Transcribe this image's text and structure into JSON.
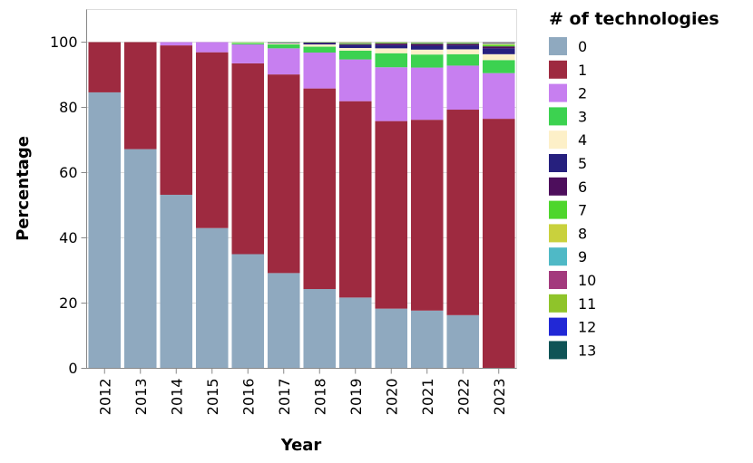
{
  "chart_data": {
    "type": "bar",
    "stacked": true,
    "title": "",
    "xlabel": "Year",
    "ylabel": "Percentage",
    "ylim": [
      0,
      110
    ],
    "yticks": [
      0,
      20,
      40,
      60,
      80,
      100
    ],
    "grid": true,
    "legend_position": "right",
    "legend_title": "# of technologies",
    "categories": [
      "2012",
      "2013",
      "2014",
      "2015",
      "2016",
      "2017",
      "2018",
      "2019",
      "2020",
      "2021",
      "2022",
      "2023"
    ],
    "series": [
      {
        "name": "0",
        "color": "#8fa9bf",
        "values": [
          84.6,
          67.2,
          53.2,
          43.0,
          35.0,
          29.2,
          24.3,
          21.7,
          18.3,
          17.7,
          16.3,
          0.0
        ]
      },
      {
        "name": "1",
        "color": "#9e2a40",
        "values": [
          15.4,
          32.8,
          45.8,
          53.9,
          58.5,
          60.9,
          61.5,
          60.2,
          57.5,
          58.5,
          63.0,
          76.5
        ]
      },
      {
        "name": "2",
        "color": "#c77ff0",
        "values": [
          0.0,
          0.0,
          1.0,
          3.1,
          5.8,
          8.0,
          11.0,
          12.8,
          16.5,
          16.0,
          13.5,
          14.0
        ]
      },
      {
        "name": "3",
        "color": "#3cd250",
        "values": [
          0.0,
          0.0,
          0.0,
          0.0,
          0.4,
          1.2,
          1.8,
          2.7,
          4.3,
          4.0,
          3.5,
          4.0
        ]
      },
      {
        "name": "4",
        "color": "#fdf0c8",
        "values": [
          0.0,
          0.0,
          0.0,
          0.0,
          0.2,
          0.4,
          0.7,
          0.8,
          1.5,
          1.5,
          1.5,
          1.8
        ]
      },
      {
        "name": "5",
        "color": "#26207e",
        "values": [
          0.0,
          0.0,
          0.0,
          0.0,
          0.0,
          0.2,
          0.4,
          0.9,
          1.0,
          1.2,
          1.2,
          1.8
        ]
      },
      {
        "name": "6",
        "color": "#4d0e5c",
        "values": [
          0.0,
          0.0,
          0.0,
          0.0,
          0.0,
          0.0,
          0.2,
          0.3,
          0.5,
          0.6,
          0.5,
          0.6
        ]
      },
      {
        "name": "7",
        "color": "#4ed62c",
        "values": [
          0.0,
          0.0,
          0.0,
          0.0,
          0.1,
          0.1,
          0.1,
          0.2,
          0.2,
          0.2,
          0.2,
          0.4
        ]
      },
      {
        "name": "8",
        "color": "#c9d13d",
        "values": [
          0.0,
          0.0,
          0.0,
          0.0,
          0.0,
          0.0,
          0.0,
          0.1,
          0.1,
          0.1,
          0.1,
          0.3
        ]
      },
      {
        "name": "9",
        "color": "#4fb9c6",
        "values": [
          0.0,
          0.0,
          0.0,
          0.0,
          0.0,
          0.0,
          0.0,
          0.1,
          0.05,
          0.1,
          0.1,
          0.2
        ]
      },
      {
        "name": "10",
        "color": "#a33a7d",
        "values": [
          0.0,
          0.0,
          0.0,
          0.0,
          0.0,
          0.0,
          0.0,
          0.1,
          0.05,
          0.05,
          0.05,
          0.2
        ]
      },
      {
        "name": "11",
        "color": "#8fc42a",
        "values": [
          0.0,
          0.0,
          0.0,
          0.0,
          0.0,
          0.0,
          0.0,
          0.1,
          0.05,
          0.05,
          0.05,
          0.1
        ]
      },
      {
        "name": "12",
        "color": "#2128d6",
        "values": [
          0.0,
          0.0,
          0.0,
          0.0,
          0.0,
          0.0,
          0.0,
          0.0,
          0.0,
          0.0,
          0.0,
          0.05
        ]
      },
      {
        "name": "13",
        "color": "#0f5356",
        "values": [
          0.0,
          0.0,
          0.0,
          0.0,
          0.0,
          0.0,
          0.0,
          0.0,
          0.0,
          0.0,
          0.0,
          0.05
        ]
      }
    ]
  }
}
